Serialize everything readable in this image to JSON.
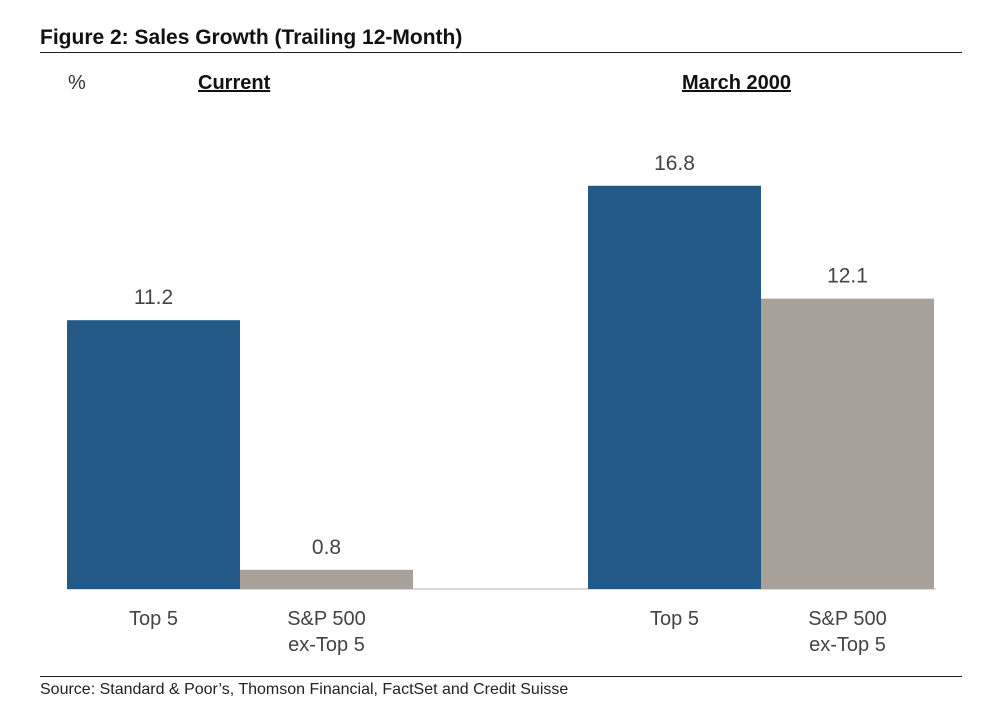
{
  "title": "Figure 2: Sales Growth (Trailing 12-Month)",
  "source": "Source: Standard & Poor’s, Thomson Financial, FactSet and Credit Suisse",
  "colors": {
    "top5": "#235986",
    "sp500_ex_top5": "#a9a29b",
    "baseline": "#d9d9d9"
  },
  "chart_data": {
    "type": "bar",
    "unit_label": "%",
    "groups": [
      "Current",
      "March 2000"
    ],
    "categories": [
      "Top 5",
      "S&P 500\nex-Top 5"
    ],
    "series": [
      {
        "name": "Top 5",
        "values": [
          11.2,
          16.8
        ]
      },
      {
        "name": "S&P 500 ex-Top 5",
        "values": [
          0.8,
          12.1
        ]
      }
    ],
    "ylim": [
      0,
      20
    ],
    "grid": false,
    "legend": "none"
  }
}
